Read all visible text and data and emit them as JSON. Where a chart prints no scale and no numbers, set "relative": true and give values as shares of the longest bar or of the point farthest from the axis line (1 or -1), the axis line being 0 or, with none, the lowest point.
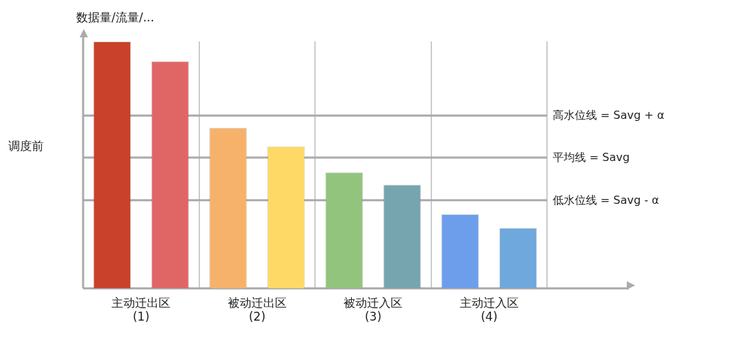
{
  "chart_data": {
    "type": "bar",
    "relative": true,
    "title": "调度前",
    "ylabel": "数据量/流量/...",
    "categories": [
      "主动迁出区\n(1)",
      "被动迁出区\n(2)",
      "被动迁入区\n(3)",
      "主动迁入区\n(4)"
    ],
    "series": [
      {
        "colors": [
          "#c9412a",
          "#f6b26b",
          "#93c47d",
          "#6d9eeb"
        ],
        "values": [
          1,
          0.65,
          0.47,
          0.3
        ]
      },
      {
        "colors": [
          "#e06666",
          "#ffd966",
          "#76a5af",
          "#6fa8dc"
        ],
        "values": [
          0.92,
          0.575,
          0.42,
          0.245
        ]
      }
    ],
    "ref_lines": [
      {
        "axis": "y",
        "value": 0.7,
        "label": "高水位线 = Savg + α",
        "color": "#aaaaaa"
      },
      {
        "axis": "y",
        "value": 0.53,
        "label": "平均线 = Savg",
        "color": "#aaaaaa"
      },
      {
        "axis": "y",
        "value": 0.357,
        "label": "低水位线 = Savg - α",
        "color": "#aaaaaa"
      }
    ],
    "grid": "x",
    "legend": false
  }
}
